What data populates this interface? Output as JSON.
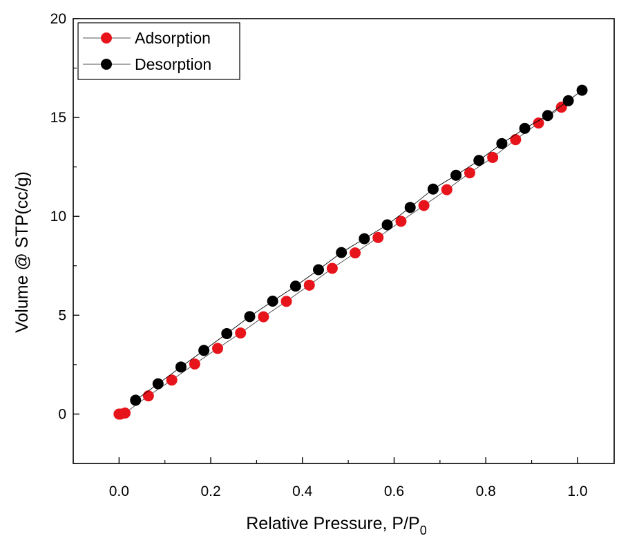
{
  "chart_data": {
    "type": "scatter",
    "xlabel": "Relative Pressure, P/P",
    "xlabel_subscript": "0",
    "ylabel": "Volume @ STP(cc/g)",
    "xlim": [
      -0.1,
      1.08
    ],
    "ylim": [
      -2.5,
      20
    ],
    "x_ticks": [
      0.0,
      0.2,
      0.4,
      0.6,
      0.8,
      1.0
    ],
    "x_tick_labels": [
      "0.0",
      "0.2",
      "0.4",
      "0.6",
      "0.8",
      "1.0"
    ],
    "y_ticks": [
      0,
      5,
      10,
      15,
      20
    ],
    "y_tick_labels": [
      "0",
      "5",
      "10",
      "15",
      "20"
    ],
    "grid": false,
    "legend_position": "top-left",
    "series": [
      {
        "name": "Adsorption",
        "color": "#e8141b",
        "x": [
          0.0,
          0.003,
          0.013,
          0.064,
          0.115,
          0.165,
          0.215,
          0.265,
          0.315,
          0.365,
          0.415,
          0.465,
          0.515,
          0.565,
          0.615,
          0.665,
          0.715,
          0.765,
          0.815,
          0.865,
          0.915,
          0.965
        ],
        "y": [
          0.0,
          0.0,
          0.05,
          0.92,
          1.72,
          2.53,
          3.32,
          4.1,
          4.92,
          5.7,
          6.52,
          7.37,
          8.15,
          8.93,
          9.75,
          10.55,
          11.35,
          12.2,
          12.98,
          13.88,
          14.72,
          15.52
        ]
      },
      {
        "name": "Desorption",
        "color": "#000000",
        "x": [
          1.01,
          0.98,
          0.935,
          0.885,
          0.835,
          0.785,
          0.735,
          0.685,
          0.635,
          0.585,
          0.535,
          0.485,
          0.435,
          0.385,
          0.335,
          0.285,
          0.235,
          0.185,
          0.135,
          0.085,
          0.036
        ],
        "y": [
          16.38,
          15.85,
          15.1,
          14.45,
          13.68,
          12.83,
          12.08,
          11.38,
          10.45,
          9.57,
          8.87,
          8.17,
          7.3,
          6.47,
          5.71,
          4.93,
          4.07,
          3.22,
          2.38,
          1.53,
          0.7
        ]
      }
    ]
  }
}
